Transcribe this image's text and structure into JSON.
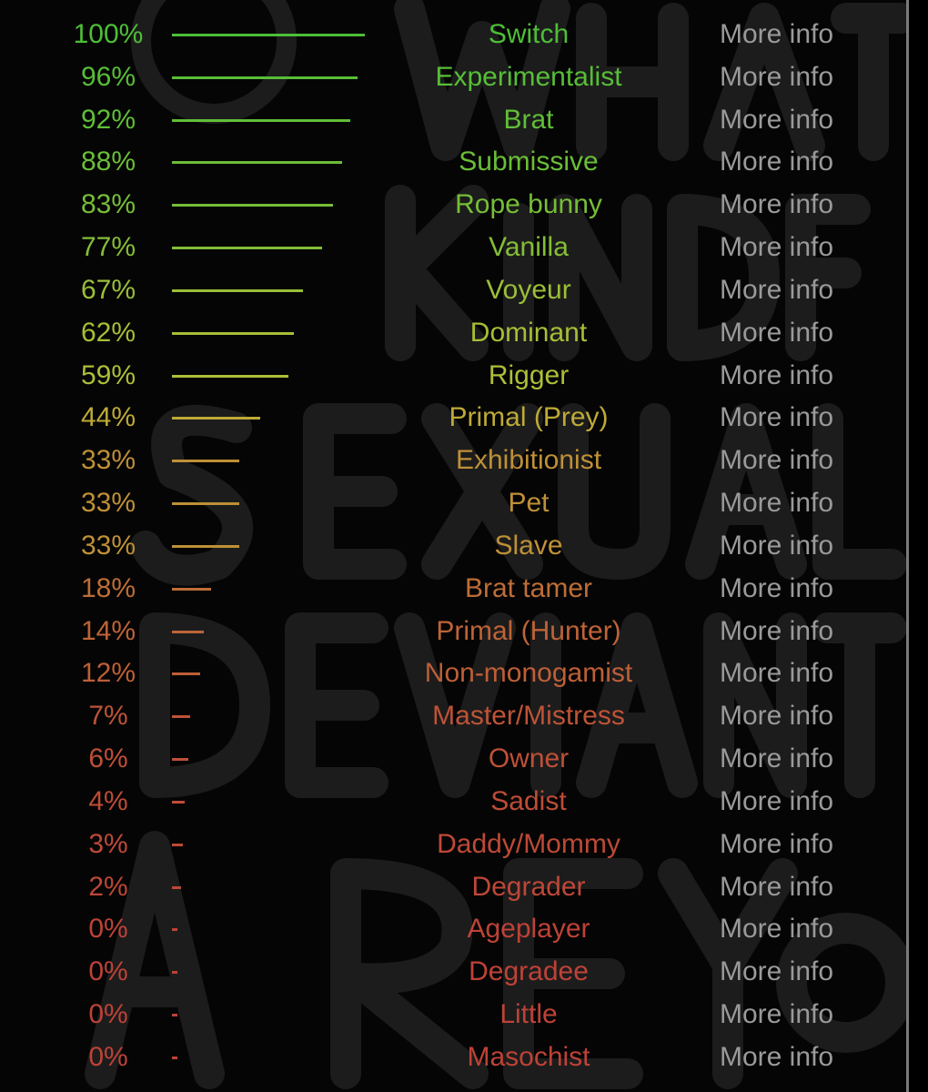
{
  "watermark": "WHAT KIND OF SEXUAL DEVIANT ARE YOU",
  "more_info_label": "More info",
  "colors": {
    "high": "#4caf35",
    "low": "#c83c32",
    "more_info": "#9a9a9a"
  },
  "results": [
    {
      "percent": 100,
      "percent_label": "100%",
      "role": "Switch"
    },
    {
      "percent": 96,
      "percent_label": "96%",
      "role": "Experimentalist"
    },
    {
      "percent": 92,
      "percent_label": "92%",
      "role": "Brat"
    },
    {
      "percent": 88,
      "percent_label": "88%",
      "role": "Submissive"
    },
    {
      "percent": 83,
      "percent_label": "83%",
      "role": "Rope bunny"
    },
    {
      "percent": 77,
      "percent_label": "77%",
      "role": "Vanilla"
    },
    {
      "percent": 67,
      "percent_label": "67%",
      "role": "Voyeur"
    },
    {
      "percent": 62,
      "percent_label": "62%",
      "role": "Dominant"
    },
    {
      "percent": 59,
      "percent_label": "59%",
      "role": "Rigger"
    },
    {
      "percent": 44,
      "percent_label": "44%",
      "role": "Primal (Prey)"
    },
    {
      "percent": 33,
      "percent_label": "33%",
      "role": "Exhibitionist"
    },
    {
      "percent": 33,
      "percent_label": "33%",
      "role": "Pet"
    },
    {
      "percent": 33,
      "percent_label": "33%",
      "role": "Slave"
    },
    {
      "percent": 18,
      "percent_label": "18%",
      "role": "Brat tamer"
    },
    {
      "percent": 14,
      "percent_label": "14%",
      "role": "Primal (Hunter)"
    },
    {
      "percent": 12,
      "percent_label": "12%",
      "role": "Non-monogamist"
    },
    {
      "percent": 7,
      "percent_label": "7%",
      "role": "Master/Mistress"
    },
    {
      "percent": 6,
      "percent_label": "6%",
      "role": "Owner"
    },
    {
      "percent": 4,
      "percent_label": "4%",
      "role": "Sadist"
    },
    {
      "percent": 3,
      "percent_label": "3%",
      "role": "Daddy/Mommy"
    },
    {
      "percent": 2,
      "percent_label": "2%",
      "role": "Degrader"
    },
    {
      "percent": 0,
      "percent_label": "0%",
      "role": "Ageplayer"
    },
    {
      "percent": 0,
      "percent_label": "0%",
      "role": "Degradee"
    },
    {
      "percent": 0,
      "percent_label": "0%",
      "role": "Little"
    },
    {
      "percent": 0,
      "percent_label": "0%",
      "role": "Masochist"
    }
  ]
}
